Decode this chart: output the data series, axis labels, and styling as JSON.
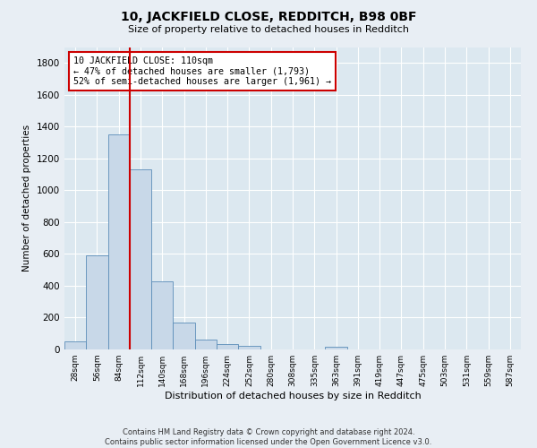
{
  "title1": "10, JACKFIELD CLOSE, REDDITCH, B98 0BF",
  "title2": "Size of property relative to detached houses in Redditch",
  "xlabel": "Distribution of detached houses by size in Redditch",
  "ylabel": "Number of detached properties",
  "footer1": "Contains HM Land Registry data © Crown copyright and database right 2024.",
  "footer2": "Contains public sector information licensed under the Open Government Licence v3.0.",
  "bin_labels": [
    "28sqm",
    "56sqm",
    "84sqm",
    "112sqm",
    "140sqm",
    "168sqm",
    "196sqm",
    "224sqm",
    "252sqm",
    "280sqm",
    "308sqm",
    "335sqm",
    "363sqm",
    "391sqm",
    "419sqm",
    "447sqm",
    "475sqm",
    "503sqm",
    "531sqm",
    "559sqm",
    "587sqm"
  ],
  "bar_values": [
    50,
    590,
    1350,
    1130,
    430,
    170,
    60,
    35,
    20,
    0,
    0,
    0,
    15,
    0,
    0,
    0,
    0,
    0,
    0,
    0,
    0
  ],
  "bar_color": "#c8d8e8",
  "bar_edge_color": "#5b8db8",
  "vline_color": "#cc0000",
  "vline_x_index": 2.5,
  "annotation_text": "10 JACKFIELD CLOSE: 110sqm\n← 47% of detached houses are smaller (1,793)\n52% of semi-detached houses are larger (1,961) →",
  "annotation_box_color": "#ffffff",
  "annotation_box_edge": "#cc0000",
  "ylim": [
    0,
    1900
  ],
  "yticks": [
    0,
    200,
    400,
    600,
    800,
    1000,
    1200,
    1400,
    1600,
    1800
  ],
  "bg_color": "#e8eef4",
  "plot_bg_color": "#dce8f0",
  "grid_color": "#ffffff"
}
